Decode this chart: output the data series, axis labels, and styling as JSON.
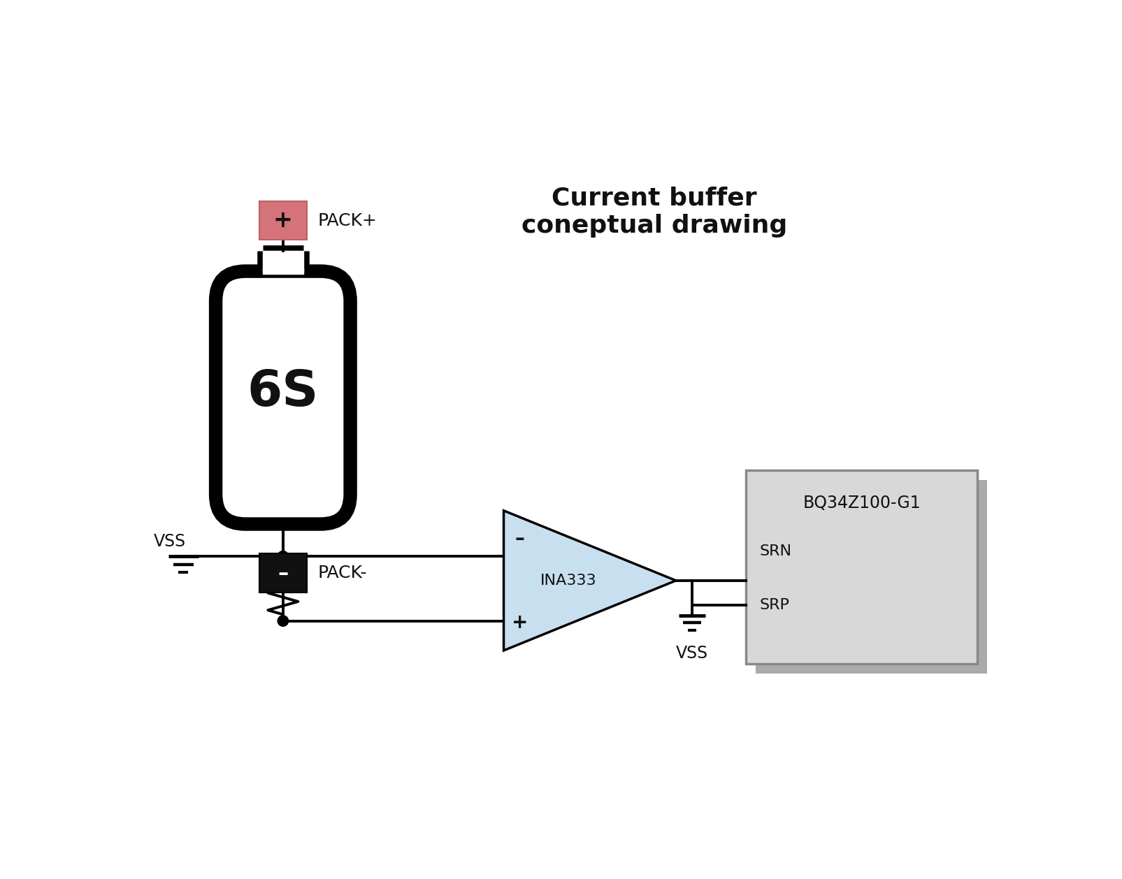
{
  "title": "Current buffer\nconeptual drawing",
  "bg_color": "#ffffff",
  "battery_color": "#000000",
  "battery_fill": "#ffffff",
  "pack_plus_color": "#d4737a",
  "pack_plus_border": "#c06060",
  "pack_minus_color": "#111111",
  "opamp_fill": "#c8dff0",
  "opamp_edge": "#000000",
  "ic_fill": "#d8d8d8",
  "ic_edge_dark": "#888888",
  "ic_edge_light": "#cccccc",
  "ic_shadow": "#aaaaaa",
  "wire_color": "#000000",
  "label_pack_plus": "PACK+",
  "label_pack_minus": "PACK-",
  "label_vss_left": "VSS",
  "label_vss_bottom": "VSS",
  "label_ina": "INA333",
  "label_ic": "BQ34Z100-G1",
  "label_srn": "SRN",
  "label_srp": "SRP",
  "label_battery": "6S",
  "label_minus": "–",
  "label_plus": "+"
}
